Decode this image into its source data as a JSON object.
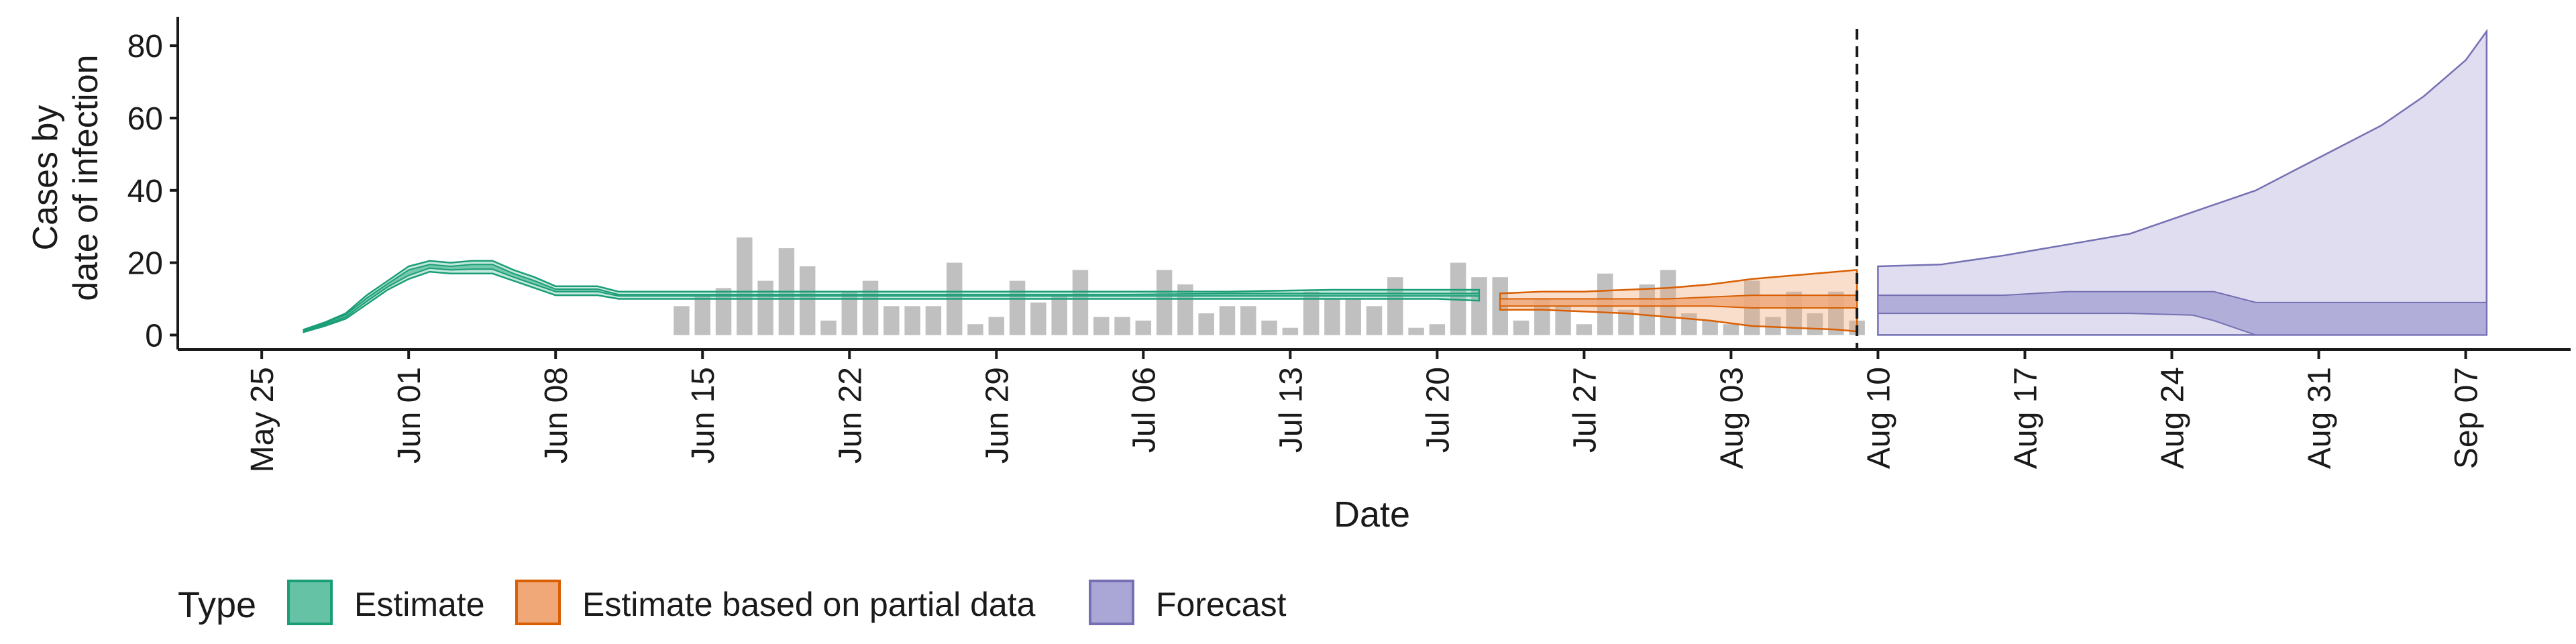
{
  "chart_data": {
    "type": "area",
    "title": "",
    "xlabel": "Date",
    "ylabel": [
      "Cases by",
      "date of infection"
    ],
    "ylim": [
      -4,
      88
    ],
    "xlim": [
      "2020-05-21",
      "2020-09-12"
    ],
    "x_ticks": [
      "May 25",
      "Jun 01",
      "Jun 08",
      "Jun 15",
      "Jun 22",
      "Jun 29",
      "Jul 06",
      "Jul 13",
      "Jul 20",
      "Jul 27",
      "Aug 03",
      "Aug 10",
      "Aug 17",
      "Aug 24",
      "Aug 31",
      "Sep 07"
    ],
    "x_tick_dates": [
      "2020-05-25",
      "2020-06-01",
      "2020-06-08",
      "2020-06-15",
      "2020-06-22",
      "2020-06-29",
      "2020-07-06",
      "2020-07-13",
      "2020-07-20",
      "2020-07-27",
      "2020-08-03",
      "2020-08-10",
      "2020-08-17",
      "2020-08-24",
      "2020-08-31",
      "2020-09-07"
    ],
    "y_ticks": [
      0,
      20,
      40,
      60,
      80
    ],
    "grid": false,
    "legend": {
      "title": "Type",
      "position": "bottom",
      "entries": [
        {
          "label": "Estimate",
          "fill": "#66c2a5",
          "stroke": "#1b9e77"
        },
        {
          "label": "Estimate based on partial data",
          "fill": "#f0a878",
          "stroke": "#d95f02"
        },
        {
          "label": "Forecast",
          "fill": "#aaa6d6",
          "stroke": "#7570b3"
        }
      ]
    },
    "vline": {
      "date": "2020-08-09",
      "style": "dashed"
    },
    "reported_cases": {
      "color": "#c0c0c0",
      "dates": [
        "2020-06-14",
        "2020-06-15",
        "2020-06-16",
        "2020-06-17",
        "2020-06-18",
        "2020-06-19",
        "2020-06-20",
        "2020-06-21",
        "2020-06-22",
        "2020-06-23",
        "2020-06-24",
        "2020-06-25",
        "2020-06-26",
        "2020-06-27",
        "2020-06-28",
        "2020-06-29",
        "2020-06-30",
        "2020-07-01",
        "2020-07-02",
        "2020-07-03",
        "2020-07-04",
        "2020-07-05",
        "2020-07-06",
        "2020-07-07",
        "2020-07-08",
        "2020-07-09",
        "2020-07-10",
        "2020-07-11",
        "2020-07-12",
        "2020-07-13",
        "2020-07-14",
        "2020-07-15",
        "2020-07-16",
        "2020-07-17",
        "2020-07-18",
        "2020-07-19",
        "2020-07-20",
        "2020-07-21",
        "2020-07-22",
        "2020-07-23",
        "2020-07-24",
        "2020-07-25",
        "2020-07-26",
        "2020-07-27",
        "2020-07-28",
        "2020-07-29",
        "2020-07-30",
        "2020-07-31",
        "2020-08-01",
        "2020-08-02",
        "2020-08-03",
        "2020-08-04",
        "2020-08-05",
        "2020-08-06",
        "2020-08-07",
        "2020-08-08",
        "2020-08-09"
      ],
      "values": [
        8,
        11,
        13,
        27,
        15,
        24,
        19,
        4,
        12,
        15,
        8,
        8,
        8,
        20,
        3,
        5,
        15,
        9,
        11,
        18,
        5,
        5,
        4,
        18,
        14,
        6,
        8,
        8,
        4,
        2,
        12,
        10,
        10,
        8,
        16,
        2,
        3,
        20,
        16,
        16,
        4,
        10,
        8,
        3,
        17,
        7,
        14,
        18,
        6,
        4,
        3,
        15,
        5,
        12,
        6,
        12,
        4
      ]
    },
    "series": [
      {
        "name": "Estimate",
        "dates": [
          "2020-05-27",
          "2020-05-28",
          "2020-05-29",
          "2020-05-30",
          "2020-05-31",
          "2020-06-01",
          "2020-06-02",
          "2020-06-03",
          "2020-06-04",
          "2020-06-05",
          "2020-06-06",
          "2020-06-07",
          "2020-06-08",
          "2020-06-09",
          "2020-06-10",
          "2020-06-11",
          "2020-06-12",
          "2020-06-13",
          "2020-06-15",
          "2020-06-20",
          "2020-06-25",
          "2020-06-30",
          "2020-07-05",
          "2020-07-10",
          "2020-07-15",
          "2020-07-20",
          "2020-07-22"
        ],
        "outer_lower": [
          0.8,
          2.5,
          4.5,
          8.5,
          12.5,
          15.5,
          17.5,
          17,
          17,
          17,
          15,
          13,
          11,
          11,
          11,
          10,
          10,
          10,
          10,
          10,
          10,
          10,
          10,
          10,
          10,
          10,
          9.5
        ],
        "outer_upper": [
          1.5,
          3.5,
          6,
          11,
          15,
          19,
          20.5,
          20,
          20.5,
          20.5,
          18,
          16,
          13.5,
          13.5,
          13.5,
          12,
          12,
          12,
          12,
          12,
          12,
          12,
          12,
          12,
          12.5,
          12.5,
          12.5
        ],
        "inner_lower": [
          1,
          2.8,
          5,
          9.3,
          13.3,
          16.5,
          18.5,
          18,
          18.2,
          18.2,
          16,
          14,
          12,
          12,
          12,
          10.8,
          10.8,
          10.8,
          10.8,
          10.8,
          10.8,
          10.8,
          10.8,
          10.8,
          10.8,
          10.8,
          10.8
        ],
        "inner_upper": [
          1.3,
          3.2,
          5.6,
          10.2,
          14.2,
          18,
          19.5,
          19,
          19.5,
          19.5,
          17,
          15,
          12.7,
          12.7,
          12.7,
          11.2,
          11.2,
          11.2,
          11.2,
          11.2,
          11.2,
          11.2,
          11.2,
          11.5,
          11.5,
          11.5,
          11.5
        ]
      },
      {
        "name": "Estimate based on partial data",
        "dates": [
          "2020-07-23",
          "2020-07-25",
          "2020-07-27",
          "2020-07-29",
          "2020-07-31",
          "2020-08-02",
          "2020-08-04",
          "2020-08-06",
          "2020-08-08",
          "2020-08-09"
        ],
        "outer_lower": [
          7,
          7,
          6.5,
          6,
          5,
          4,
          2.5,
          2,
          1.5,
          1
        ],
        "outer_upper": [
          11.5,
          12,
          12,
          12.5,
          13,
          14,
          15.5,
          16.5,
          17.5,
          18
        ],
        "inner_lower": [
          8,
          8,
          8,
          8,
          8,
          8,
          7.5,
          7.5,
          7.5,
          7.5
        ],
        "inner_upper": [
          10,
          10,
          10,
          10,
          10,
          10.5,
          11,
          11,
          11,
          11
        ]
      },
      {
        "name": "Forecast",
        "dates": [
          "2020-08-10",
          "2020-08-13",
          "2020-08-16",
          "2020-08-19",
          "2020-08-22",
          "2020-08-25",
          "2020-08-26",
          "2020-08-28",
          "2020-08-30",
          "2020-09-01",
          "2020-09-03",
          "2020-09-05",
          "2020-09-07",
          "2020-09-08"
        ],
        "outer_lower": [
          0,
          0,
          0,
          0,
          0,
          0,
          0,
          0,
          0,
          0,
          0,
          0,
          0,
          0
        ],
        "outer_upper": [
          19,
          19.5,
          22,
          25,
          28,
          34,
          36,
          40,
          46,
          52,
          58,
          66,
          76,
          84
        ],
        "inner_lower": [
          6,
          6,
          6,
          6,
          6,
          5.5,
          4,
          0,
          0,
          0,
          0,
          0,
          0,
          0
        ],
        "inner_upper": [
          11,
          11,
          11,
          12,
          12,
          12,
          12,
          9,
          9,
          9,
          9,
          9,
          9,
          9
        ]
      }
    ]
  }
}
